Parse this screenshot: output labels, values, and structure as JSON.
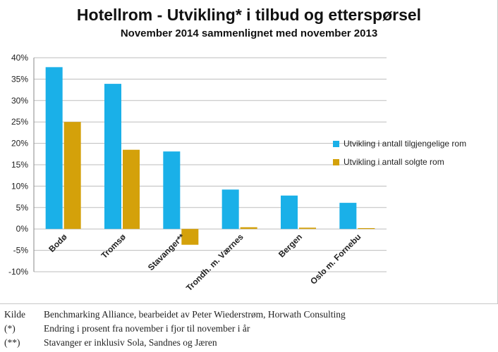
{
  "chart_data": {
    "type": "bar",
    "title": "Hotellrom - Utvikling* i tilbud og etterspørsel",
    "subtitle": "November 2014 sammenlignet med november 2013",
    "xlabel": "",
    "ylabel": "",
    "ylim": [
      -0.1,
      0.4
    ],
    "yticks": [
      "40%",
      "35%",
      "30%",
      "25%",
      "20%",
      "15%",
      "10%",
      "5%",
      "0%",
      "-5%",
      "-10%"
    ],
    "grid": true,
    "legend_position": "right",
    "categories": [
      "Bodø",
      "Tromsø",
      "Stavanger**",
      "Trondh. m. Værnes",
      "Bergen",
      "Oslo m. Fornebu"
    ],
    "series": [
      {
        "name": "Utvikling i antall tilgjengelige rom",
        "color": "#1ab0e8",
        "values": [
          0.378,
          0.339,
          0.181,
          0.092,
          0.078,
          0.061
        ]
      },
      {
        "name": "Utvikling i antall solgte rom",
        "color": "#d4a10a",
        "values": [
          0.25,
          0.185,
          -0.037,
          0.004,
          0.003,
          0.002
        ]
      }
    ]
  },
  "notes": [
    {
      "key": "Kilde",
      "text": "Benchmarking Alliance, bearbeidet av Peter Wiederstrøm, Horwath Consulting"
    },
    {
      "key": "(*)",
      "text": "Endring i prosent fra november i fjor til november i år"
    },
    {
      "key": "(**)",
      "text": "Stavanger er inklusiv Sola, Sandnes og Jæren"
    }
  ]
}
